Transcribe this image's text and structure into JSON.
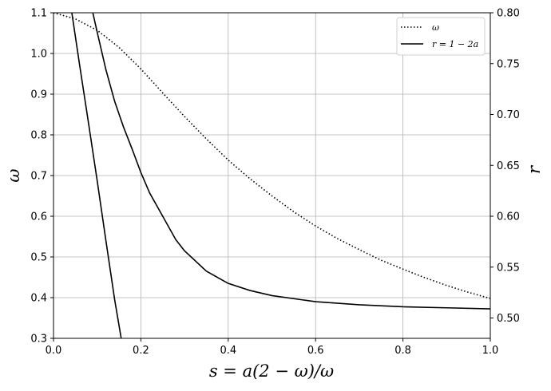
{
  "chart_data": {
    "type": "line",
    "xlabel": "s = a(2 − ω)/ω",
    "ylabel_left": "ω",
    "ylabel_right": "r",
    "xlim": [
      0,
      1
    ],
    "ylim_left": [
      0.3,
      1.1
    ],
    "ylim_right": [
      0.48,
      0.8
    ],
    "x_ticks": [
      "0.0",
      "0.2",
      "0.4",
      "0.6",
      "0.8",
      "1.0"
    ],
    "y_ticks_left": [
      "0.3",
      "0.4",
      "0.5",
      "0.6",
      "0.7",
      "0.8",
      "0.9",
      "1.0",
      "1.1"
    ],
    "y_ticks_right": [
      "0.50",
      "0.55",
      "0.60",
      "0.65",
      "0.70",
      "0.75",
      "0.80"
    ],
    "grid": true,
    "legend_position": "top-right",
    "legend": [
      {
        "label": "ω",
        "style": "dotted"
      },
      {
        "label": "r = 1 − 2a",
        "style": "solid"
      }
    ],
    "series": [
      {
        "name": "ω",
        "axis": "left",
        "style": "dotted",
        "color": "#000000",
        "x": [
          0,
          0.05,
          0.1,
          0.15,
          0.2,
          0.25,
          0.3,
          0.35,
          0.4,
          0.45,
          0.5,
          0.55,
          0.6,
          0.65,
          0.7,
          0.75,
          0.8,
          0.85,
          0.9,
          0.95,
          1.0
        ],
        "y": [
          1.1,
          1.085,
          1.057,
          1.015,
          0.962,
          0.903,
          0.845,
          0.79,
          0.738,
          0.692,
          0.65,
          0.611,
          0.576,
          0.545,
          0.518,
          0.492,
          0.47,
          0.449,
          0.43,
          0.413,
          0.398
        ]
      },
      {
        "name": "r = 1 − 2a",
        "axis": "right",
        "style": "solid",
        "color": "#000000",
        "x": [
          0.042,
          0.06,
          0.08,
          0.1,
          0.12,
          0.14,
          0.155
        ],
        "y": [
          0.8,
          0.748,
          0.692,
          0.635,
          0.576,
          0.518,
          0.48
        ]
      },
      {
        "name": "r = 1 − 2a",
        "axis": "right",
        "style": "solid",
        "color": "#000000",
        "x": [
          0.09,
          0.1,
          0.12,
          0.14,
          0.16,
          0.18,
          0.2,
          0.22,
          0.25,
          0.28,
          0.3,
          0.35,
          0.4,
          0.45,
          0.5,
          0.6,
          0.7,
          0.8,
          0.9,
          1.0
        ],
        "y": [
          0.8,
          0.781,
          0.744,
          0.713,
          0.688,
          0.666,
          0.643,
          0.623,
          0.6,
          0.577,
          0.566,
          0.546,
          0.534,
          0.527,
          0.522,
          0.516,
          0.513,
          0.511,
          0.51,
          0.509
        ]
      }
    ]
  }
}
